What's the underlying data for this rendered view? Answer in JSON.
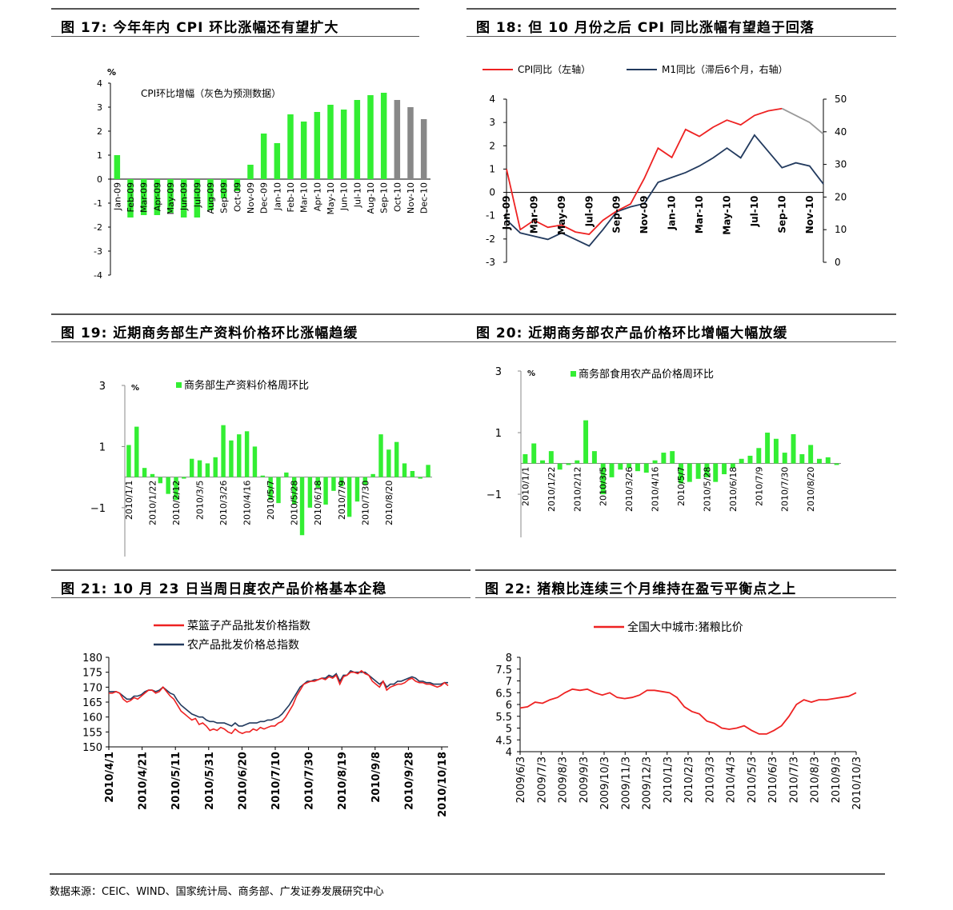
{
  "panels": [
    {
      "id": "fig17",
      "title": "图 17: 今年年内 CPI 环比涨幅还有望扩大",
      "chart_data": {
        "type": "bar",
        "unit_label": "%",
        "legend_text": "CPI环比增幅（灰色为预测数据）",
        "categories": [
          "Jan-09",
          "Feb-09",
          "Mar-09",
          "Apr-09",
          "May-09",
          "Jun-09",
          "Jul-09",
          "Aug-09",
          "Sep-09",
          "Oct-09",
          "Nov-09",
          "Dec-09",
          "Jan-10",
          "Feb-10",
          "Mar-10",
          "Apr-10",
          "May-10",
          "Jun-10",
          "Jul-10",
          "Aug-10",
          "Sep-10",
          "Oct-10",
          "Nov-10",
          "Dec-10"
        ],
        "values": [
          1.0,
          -1.6,
          -1.5,
          -1.5,
          -1.4,
          -1.6,
          -1.6,
          -1.3,
          -0.8,
          -0.5,
          0.6,
          1.9,
          1.5,
          2.7,
          2.4,
          2.8,
          3.1,
          2.9,
          3.3,
          3.5,
          3.6,
          3.3,
          3.0,
          2.5
        ],
        "forecast_from_index": 21,
        "colors": {
          "actual": "#33ee33",
          "forecast": "#888888"
        },
        "ylim": [
          -4,
          4
        ],
        "yticks": [
          4,
          3,
          2,
          1,
          0,
          -1,
          -2,
          -3,
          -4
        ]
      }
    },
    {
      "id": "fig18",
      "title": "图 18: 但 10 月份之后 CPI 同比涨幅有望趋于回落",
      "chart_data": {
        "type": "line",
        "legend": [
          {
            "name": "CPI同比（左轴）",
            "color": "#ee2222"
          },
          {
            "name": "M1同比（滞后6个月，右轴）",
            "color": "#223a5e"
          }
        ],
        "categories": [
          "Jan-09",
          "Feb-09",
          "Mar-09",
          "Apr-09",
          "May-09",
          "Jun-09",
          "Jul-09",
          "Aug-09",
          "Sep-09",
          "Oct-09",
          "Nov-09",
          "Dec-09",
          "Jan-10",
          "Feb-10",
          "Mar-10",
          "Apr-10",
          "May-10",
          "Jun-10",
          "Jul-10",
          "Aug-10",
          "Sep-10",
          "Oct-10",
          "Nov-10",
          "Dec-10"
        ],
        "x_tick_labels": [
          "Jan-09",
          "Mar-09",
          "May-09",
          "Jul-09",
          "Sep-09",
          "Nov-09",
          "Jan-10",
          "Mar-10",
          "May-10",
          "Jul-10",
          "Sep-10",
          "Nov-10"
        ],
        "cpi": [
          1.0,
          -1.6,
          -1.2,
          -1.5,
          -1.4,
          -1.7,
          -1.8,
          -1.2,
          -0.8,
          -0.5,
          0.6,
          1.9,
          1.5,
          2.7,
          2.4,
          2.8,
          3.1,
          2.9,
          3.3,
          3.5,
          3.6,
          null,
          null,
          null
        ],
        "cpi_forecast": [
          null,
          null,
          null,
          null,
          null,
          null,
          null,
          null,
          null,
          null,
          null,
          null,
          null,
          null,
          null,
          null,
          null,
          null,
          null,
          null,
          3.6,
          3.3,
          3.0,
          2.5
        ],
        "m1": [
          13,
          9,
          8,
          7,
          9,
          7,
          5,
          10,
          15.5,
          17,
          18,
          24.5,
          26,
          27.5,
          29.5,
          32,
          35,
          32,
          39,
          34,
          29,
          30.5,
          29.5,
          24
        ],
        "left_ylim": [
          -3,
          4
        ],
        "left_ticks": [
          4,
          3,
          2,
          1,
          0,
          -1,
          -2,
          -3
        ],
        "right_ylim": [
          0,
          50
        ],
        "right_ticks": [
          50,
          40,
          30,
          20,
          10,
          0
        ]
      }
    },
    {
      "id": "fig19",
      "title": "图 19: 近期商务部生产资料价格环比涨幅趋缓",
      "chart_data": {
        "type": "bar",
        "unit_label": "%",
        "legend_text": "商务部生产资料价格周环比",
        "color": "#33ee33",
        "values": [
          1.05,
          1.65,
          0.3,
          0.1,
          -0.2,
          -0.55,
          -0.75,
          -0.05,
          0.6,
          0.55,
          0.45,
          0.65,
          1.7,
          1.2,
          1.4,
          1.5,
          1.0,
          0.05,
          -0.75,
          -0.85,
          0.15,
          -0.9,
          -1.9,
          -1.0,
          -0.35,
          -0.9,
          -0.45,
          -0.3,
          -1.3,
          -0.8,
          -0.25,
          0.1,
          1.4,
          0.9,
          1.15,
          0.45,
          0.2,
          -0.05,
          0.4
        ],
        "x_tick_labels": [
          "2010/1/1",
          "2010/1/22",
          "2010/2/12",
          "2010/3/5",
          "2010/3/26",
          "2010/4/16",
          "2010/5/7",
          "2010/5/28",
          "2010/6/18",
          "2010/7/9",
          "2010/7/30",
          "2010/8/20"
        ],
        "ylim": [
          -2.6,
          3
        ],
        "yticks": [
          3,
          1,
          -1
        ]
      }
    },
    {
      "id": "fig20",
      "title": "图 20: 近期商务部农产品价格环比增幅大幅放缓",
      "chart_data": {
        "type": "bar",
        "unit_label": "%",
        "legend_text": "商务部食用农产品价格周环比",
        "color": "#33ee33",
        "values": [
          0.3,
          0.65,
          0.1,
          0.4,
          -0.2,
          -0.05,
          0.1,
          1.4,
          0.4,
          -1.0,
          -0.45,
          -0.2,
          -0.15,
          -0.25,
          -0.3,
          0.1,
          0.35,
          0.4,
          -0.65,
          -0.6,
          -0.5,
          -0.45,
          -0.6,
          -0.35,
          -0.15,
          0.15,
          0.25,
          0.5,
          1.0,
          0.8,
          0.35,
          0.95,
          0.3,
          0.6,
          0.15,
          0.2,
          -0.05
        ],
        "x_tick_labels": [
          "2010/1/1",
          "2010/1/22",
          "2010/2/12",
          "2010/3/5",
          "2010/3/26",
          "2010/4/16",
          "2010/5/7",
          "2010/5/28",
          "2010/6/18",
          "2010/7/9",
          "2010/7/30",
          "2010/8/20"
        ],
        "ylim": [
          -2.4,
          3
        ],
        "yticks": [
          3,
          1,
          -1
        ]
      }
    },
    {
      "id": "fig21",
      "title": "图 21: 10 月 23 日当周日度农产品价格基本企稳",
      "chart_data": {
        "type": "line",
        "legend": [
          {
            "name": "菜篮子产品批发价格指数",
            "color": "#ee2222"
          },
          {
            "name": "农产品批发价格总指数",
            "color": "#223a5e"
          }
        ],
        "series_red": [
          168,
          168,
          168.5,
          168,
          166,
          165,
          165.5,
          166.5,
          166,
          167,
          168,
          169,
          169,
          168,
          168.5,
          170,
          168.5,
          167,
          166,
          164,
          162,
          161,
          160,
          159,
          159.5,
          157.5,
          158,
          157,
          155.5,
          156,
          155.5,
          156.5,
          156,
          155,
          154.5,
          156,
          155,
          154.5,
          155,
          155,
          156,
          155.5,
          156.5,
          156,
          156.5,
          157,
          157,
          158,
          158.5,
          160,
          162,
          164,
          167,
          169,
          171,
          171.5,
          172,
          172,
          172.5,
          173,
          172.5,
          173.5,
          173,
          174,
          171,
          173.5,
          174,
          175,
          175,
          174.5,
          175.5,
          174.5,
          174,
          172,
          171,
          170,
          172,
          169,
          170,
          170.5,
          171,
          171,
          171.5,
          172.5,
          173,
          172,
          171.5,
          171.5,
          171,
          171,
          170.5,
          170,
          170.5,
          171.5,
          170.5
        ],
        "series_blue": [
          168.5,
          168.5,
          168.5,
          168,
          167,
          166,
          166,
          167,
          167,
          167.5,
          168.5,
          169,
          169,
          168.5,
          169,
          170,
          169,
          168,
          167.5,
          165.5,
          164,
          163,
          162,
          161,
          160.5,
          160,
          160,
          159,
          158.5,
          158.5,
          158,
          158,
          158,
          157.5,
          157,
          158,
          157,
          157,
          157.5,
          158,
          158,
          158,
          158.5,
          158.5,
          159,
          159,
          159.5,
          160,
          161,
          162.5,
          164,
          166,
          168,
          170,
          171,
          172,
          172,
          172.5,
          172.5,
          173,
          173,
          174,
          173.5,
          174.5,
          172,
          174,
          174,
          175.5,
          175,
          175,
          175,
          175,
          174,
          173,
          172,
          171,
          172,
          170,
          171,
          171,
          172,
          172,
          172.5,
          173,
          173.5,
          173,
          172,
          172,
          171.5,
          171.5,
          171,
          171,
          171,
          171.5,
          171.5
        ],
        "x_tick_labels": [
          "2010/4/1",
          "2010/4/21",
          "2010/5/11",
          "2010/5/31",
          "2010/6/20",
          "2010/7/10",
          "2010/7/30",
          "2010/8/19",
          "2010/9/8",
          "2010/9/28",
          "2010/10/18"
        ],
        "ylim": [
          150,
          180
        ],
        "yticks": [
          180,
          175,
          170,
          165,
          160,
          155,
          150
        ]
      }
    },
    {
      "id": "fig22",
      "title": "图 22: 猪粮比连续三个月维持在盈亏平衡点之上",
      "chart_data": {
        "type": "line",
        "legend": [
          {
            "name": "全国大中城市:猪粮比价",
            "color": "#ee2222"
          }
        ],
        "values": [
          5.85,
          5.9,
          6.1,
          6.05,
          6.2,
          6.3,
          6.5,
          6.65,
          6.6,
          6.65,
          6.5,
          6.4,
          6.5,
          6.3,
          6.25,
          6.3,
          6.4,
          6.6,
          6.6,
          6.55,
          6.5,
          6.3,
          5.9,
          5.7,
          5.6,
          5.3,
          5.2,
          5.0,
          4.95,
          5.0,
          5.1,
          4.9,
          4.75,
          4.75,
          4.9,
          5.1,
          5.5,
          6.0,
          6.2,
          6.1,
          6.2,
          6.2,
          6.25,
          6.3,
          6.35,
          6.5
        ],
        "x_tick_labels": [
          "2009/6/3",
          "2009/7/3",
          "2009/8/3",
          "2009/9/3",
          "2009/10/3",
          "2009/11/3",
          "2009/12/3",
          "2010/1/3",
          "2010/2/3",
          "2010/3/3",
          "2010/4/3",
          "2010/5/3",
          "2010/6/3",
          "2010/7/3",
          "2010/8/3",
          "2010/9/3",
          "2010/10/3"
        ],
        "ylim": [
          4.0,
          8.0
        ],
        "yticks": [
          8.0,
          7.5,
          7.0,
          6.5,
          6.0,
          5.5,
          5.0,
          4.5,
          4.0
        ]
      }
    }
  ],
  "footer": "数据来源：CEIC、WIND、国家统计局、商务部、广发证券发展研究中心"
}
